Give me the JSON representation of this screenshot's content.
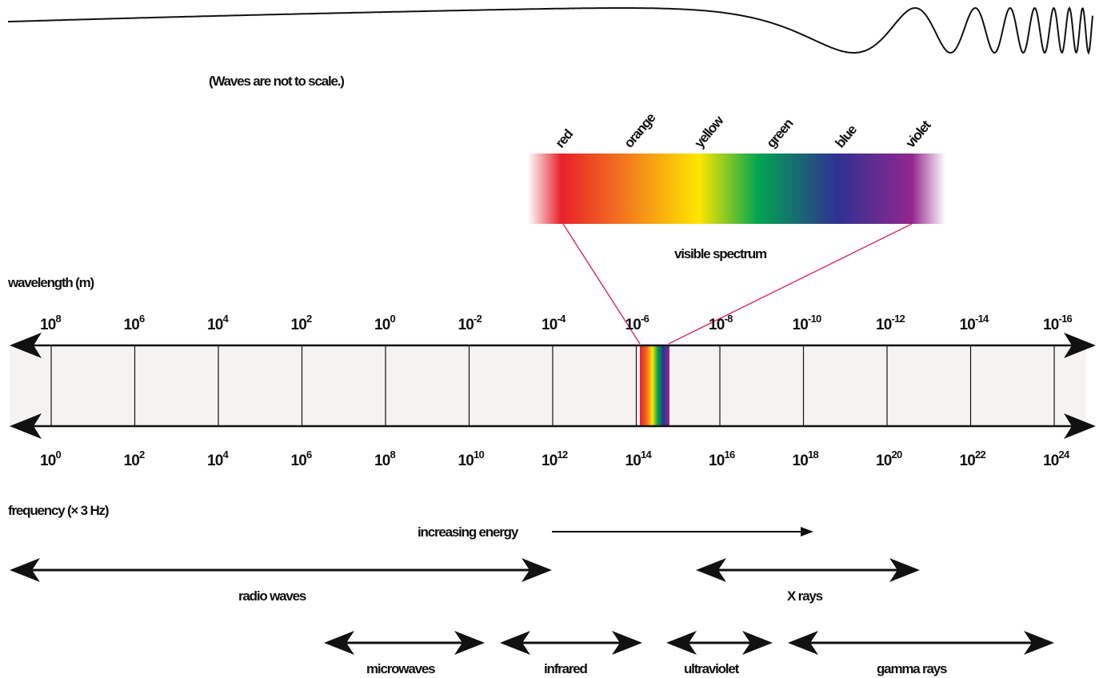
{
  "wave_note": "(Waves are not to scale.)",
  "spectrum": {
    "caption": "visible spectrum",
    "colors": [
      {
        "label": "red",
        "hex": "#e8202a"
      },
      {
        "label": "orange",
        "hex": "#f26522"
      },
      {
        "label": "yellow",
        "hex": "#ffe600"
      },
      {
        "label": "green",
        "hex": "#00a651"
      },
      {
        "label": "blue",
        "hex": "#2e3192"
      },
      {
        "label": "violet",
        "hex": "#92278f"
      }
    ]
  },
  "wavelength": {
    "title": "wavelength (m)",
    "ticks": [
      {
        "base": "10",
        "exp": "8"
      },
      {
        "base": "10",
        "exp": "6"
      },
      {
        "base": "10",
        "exp": "4"
      },
      {
        "base": "10",
        "exp": "2"
      },
      {
        "base": "10",
        "exp": "0"
      },
      {
        "base": "10",
        "exp": "-2"
      },
      {
        "base": "10",
        "exp": "-4"
      },
      {
        "base": "10",
        "exp": "-6"
      },
      {
        "base": "10",
        "exp": "-8"
      },
      {
        "base": "10",
        "exp": "-10"
      },
      {
        "base": "10",
        "exp": "-12"
      },
      {
        "base": "10",
        "exp": "-14"
      },
      {
        "base": "10",
        "exp": "-16"
      }
    ]
  },
  "frequency": {
    "title": "frequency (× 3 Hz)",
    "ticks": [
      {
        "base": "10",
        "exp": "0"
      },
      {
        "base": "10",
        "exp": "2"
      },
      {
        "base": "10",
        "exp": "4"
      },
      {
        "base": "10",
        "exp": "6"
      },
      {
        "base": "10",
        "exp": "8"
      },
      {
        "base": "10",
        "exp": "10"
      },
      {
        "base": "10",
        "exp": "12"
      },
      {
        "base": "10",
        "exp": "14"
      },
      {
        "base": "10",
        "exp": "16"
      },
      {
        "base": "10",
        "exp": "18"
      },
      {
        "base": "10",
        "exp": "20"
      },
      {
        "base": "10",
        "exp": "22"
      },
      {
        "base": "10",
        "exp": "24"
      }
    ]
  },
  "energy_label": "increasing energy",
  "bands": {
    "radio": "radio waves",
    "xrays": "X rays",
    "microwaves": "microwaves",
    "infrared": "infrared",
    "ultraviolet": "ultraviolet",
    "gamma": "gamma rays"
  },
  "colors": {
    "band_fill": "#f4f3f2",
    "ink": "#111111",
    "connector": "#d6336c"
  }
}
